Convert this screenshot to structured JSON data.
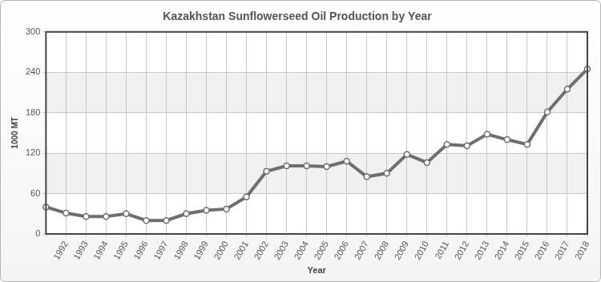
{
  "chart_data": {
    "type": "line",
    "title": "Kazakhstan Sunflowerseed Oil Production by Year",
    "x_label": "Year",
    "y_label": "1000 MT",
    "categories": [
      null,
      "1992",
      "1993",
      "1994",
      "1995",
      "1996",
      "1997",
      "1998",
      "1999",
      "2000",
      "2001",
      "2002",
      "2003",
      "2004",
      "2005",
      "2006",
      "2007",
      "2008",
      "2009",
      "2010",
      "2011",
      "2012",
      "2013",
      "2014",
      "2015",
      "2016",
      "2017",
      "2018"
    ],
    "values": [
      40,
      31,
      26,
      26,
      30,
      20,
      20,
      30,
      35,
      37,
      55,
      93,
      101,
      101,
      100,
      108,
      85,
      90,
      118,
      106,
      133,
      131,
      148,
      140,
      133,
      181,
      215,
      245
    ],
    "color": "#6e6e6e",
    "marker": "circle",
    "ylim": [
      0,
      300
    ],
    "yticks": [
      0,
      60,
      120,
      180,
      240,
      300
    ],
    "grid": true
  }
}
